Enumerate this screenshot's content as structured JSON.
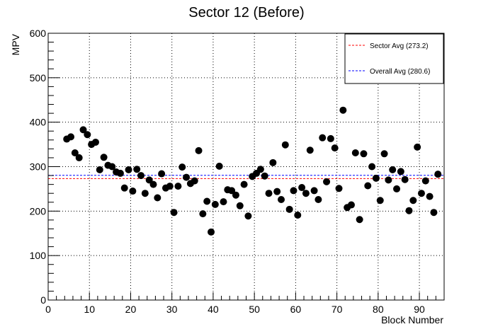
{
  "chart_data": {
    "type": "scatter",
    "title": "Sector 12 (Before)",
    "xlabel": "Block Number",
    "ylabel": "MPV",
    "xlim": [
      0,
      96
    ],
    "ylim": [
      0,
      600
    ],
    "grid": true,
    "legend_position": "top-right",
    "x_ticks": [
      0,
      10,
      20,
      30,
      40,
      50,
      60,
      70,
      80,
      90
    ],
    "y_ticks": [
      0,
      100,
      200,
      300,
      400,
      500,
      600
    ],
    "x_tick_labels": [
      "0",
      "10",
      "20",
      "30",
      "40",
      "50",
      "60",
      "70",
      "80",
      "90"
    ],
    "y_tick_labels": [
      "0",
      "100",
      "200",
      "300",
      "400",
      "500",
      "600"
    ],
    "series": [
      {
        "color": "#000000",
        "marker": "circle",
        "points": [
          [
            4.5,
            362
          ],
          [
            5.5,
            367
          ],
          [
            6.5,
            331
          ],
          [
            7.5,
            320
          ],
          [
            8.5,
            383
          ],
          [
            9.5,
            372
          ],
          [
            10.5,
            350
          ],
          [
            11.5,
            355
          ],
          [
            12.5,
            293
          ],
          [
            13.5,
            321
          ],
          [
            14.5,
            303
          ],
          [
            15.5,
            300
          ],
          [
            16.5,
            288
          ],
          [
            17.5,
            285
          ],
          [
            18.5,
            252
          ],
          [
            19.5,
            293
          ],
          [
            20.5,
            245
          ],
          [
            21.5,
            294
          ],
          [
            22.5,
            280
          ],
          [
            23.5,
            240
          ],
          [
            24.5,
            270
          ],
          [
            25.5,
            260
          ],
          [
            26.5,
            230
          ],
          [
            27.5,
            284
          ],
          [
            28.5,
            252
          ],
          [
            29.5,
            256
          ],
          [
            30.5,
            197
          ],
          [
            31.5,
            256
          ],
          [
            32.5,
            299
          ],
          [
            33.5,
            276
          ],
          [
            34.5,
            262
          ],
          [
            35.5,
            268
          ],
          [
            36.5,
            336
          ],
          [
            37.5,
            194
          ],
          [
            38.5,
            222
          ],
          [
            39.5,
            153
          ],
          [
            40.5,
            215
          ],
          [
            41.5,
            301
          ],
          [
            42.5,
            221
          ],
          [
            43.5,
            248
          ],
          [
            44.5,
            246
          ],
          [
            45.5,
            236
          ],
          [
            46.5,
            212
          ],
          [
            47.5,
            260
          ],
          [
            48.5,
            189
          ],
          [
            49.5,
            278
          ],
          [
            50.5,
            285
          ],
          [
            51.5,
            294
          ],
          [
            52.5,
            279
          ],
          [
            53.5,
            240
          ],
          [
            54.5,
            309
          ],
          [
            55.5,
            244
          ],
          [
            56.5,
            226
          ],
          [
            57.5,
            349
          ],
          [
            58.5,
            204
          ],
          [
            59.5,
            246
          ],
          [
            60.5,
            191
          ],
          [
            61.5,
            253
          ],
          [
            62.5,
            240
          ],
          [
            63.5,
            337
          ],
          [
            64.5,
            246
          ],
          [
            65.5,
            226
          ],
          [
            66.5,
            365
          ],
          [
            67.5,
            266
          ],
          [
            68.5,
            363
          ],
          [
            69.5,
            342
          ],
          [
            70.5,
            251
          ],
          [
            71.5,
            427
          ],
          [
            72.5,
            208
          ],
          [
            73.5,
            214
          ],
          [
            74.5,
            331
          ],
          [
            75.5,
            181
          ],
          [
            76.5,
            329
          ],
          [
            77.5,
            257
          ],
          [
            78.5,
            300
          ],
          [
            79.5,
            274
          ],
          [
            80.5,
            224
          ],
          [
            81.5,
            329
          ],
          [
            82.5,
            270
          ],
          [
            83.5,
            293
          ],
          [
            84.5,
            250
          ],
          [
            85.5,
            289
          ],
          [
            86.5,
            271
          ],
          [
            87.5,
            201
          ],
          [
            88.5,
            224
          ],
          [
            89.5,
            344
          ],
          [
            90.5,
            240
          ],
          [
            91.5,
            268
          ],
          [
            92.5,
            233
          ],
          [
            93.5,
            197
          ],
          [
            94.5,
            283
          ]
        ]
      }
    ],
    "reference_lines": [
      {
        "name": "Sector Avg (273.2)",
        "value": 273.2,
        "color": "#ff0000",
        "style": "dashed"
      },
      {
        "name": "Overall Avg (280.6)",
        "value": 280.6,
        "color": "#0000ff",
        "style": "dashed"
      }
    ]
  }
}
